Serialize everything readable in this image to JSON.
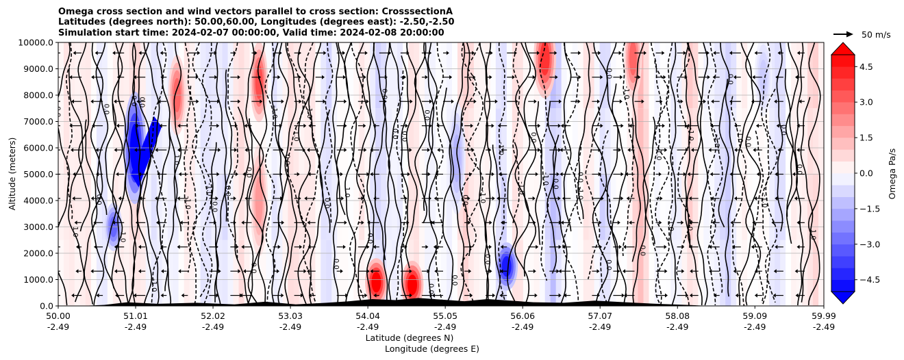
{
  "chart_data": {
    "type": "heatmap",
    "title_lines": [
      "Omega cross section and wind vectors parallel to cross section: CrosssectionA",
      "Latitudes (degrees north): 50.00,60.00, Longitudes (degrees east): -2.50,-2.50",
      "Simulation start time: 2024-02-07 00:00:00, Valid time: 2024-02-08 20:00:00"
    ],
    "ylabel": "Altitude (meters)",
    "xlabel_line1": "Latitude (degrees N)",
    "xlabel_line2": "Longitude (degrees E)",
    "ylim": [
      0,
      10000
    ],
    "y_ticks": [
      "0.0",
      "1000.0",
      "2000.0",
      "3000.0",
      "4000.0",
      "5000.0",
      "6000.0",
      "7000.0",
      "8000.0",
      "9000.0",
      "10000.0"
    ],
    "x_ticks": [
      {
        "lat": "50.00",
        "lon": "-2.49"
      },
      {
        "lat": "51.01",
        "lon": "-2.49"
      },
      {
        "lat": "52.02",
        "lon": "-2.49"
      },
      {
        "lat": "53.03",
        "lon": "-2.49"
      },
      {
        "lat": "54.04",
        "lon": "-2.49"
      },
      {
        "lat": "55.05",
        "lon": "-2.49"
      },
      {
        "lat": "56.06",
        "lon": "-2.49"
      },
      {
        "lat": "57.07",
        "lon": "-2.49"
      },
      {
        "lat": "58.08",
        "lon": "-2.49"
      },
      {
        "lat": "59.09",
        "lon": "-2.49"
      },
      {
        "lat": "59.99",
        "lon": "-2.49"
      }
    ],
    "colorbar": {
      "label": "Omega Pa/s",
      "range": [
        -5.0,
        5.0
      ],
      "extend": "both",
      "tick_labels": [
        "−4.5",
        "−3.0",
        "−1.5",
        "0.0",
        "1.5",
        "3.0",
        "4.5"
      ],
      "tick_values": [
        -4.5,
        -3.0,
        -1.5,
        0.0,
        1.5,
        3.0,
        4.5
      ]
    },
    "quiver_key": {
      "label": "50 m/s",
      "speed": 50
    },
    "contour_label_texts": [
      "0.0",
      "-1.0",
      "1.0",
      "-2.0",
      "2.0"
    ],
    "omega_features": [
      {
        "lat": 50.72,
        "alt": 3000,
        "value": -3.0
      },
      {
        "lat": 51.0,
        "alt": 6000,
        "value": -5.0
      },
      {
        "lat": 51.55,
        "alt": 8000,
        "value": 3.0
      },
      {
        "lat": 52.62,
        "alt": 4000,
        "value": 2.0
      },
      {
        "lat": 52.62,
        "alt": 8500,
        "value": 3.5
      },
      {
        "lat": 54.15,
        "alt": 900,
        "value": 5.0
      },
      {
        "lat": 54.62,
        "alt": 800,
        "value": 5.0
      },
      {
        "lat": 55.85,
        "alt": 1500,
        "value": -4.5
      },
      {
        "lat": 56.35,
        "alt": 9400,
        "value": 4.0
      },
      {
        "lat": 57.5,
        "alt": 9400,
        "value": 3.0
      },
      {
        "lat": 55.2,
        "alt": 5600,
        "value": -1.5
      },
      {
        "lat": 59.2,
        "alt": 8700,
        "value": -1.0
      }
    ]
  }
}
